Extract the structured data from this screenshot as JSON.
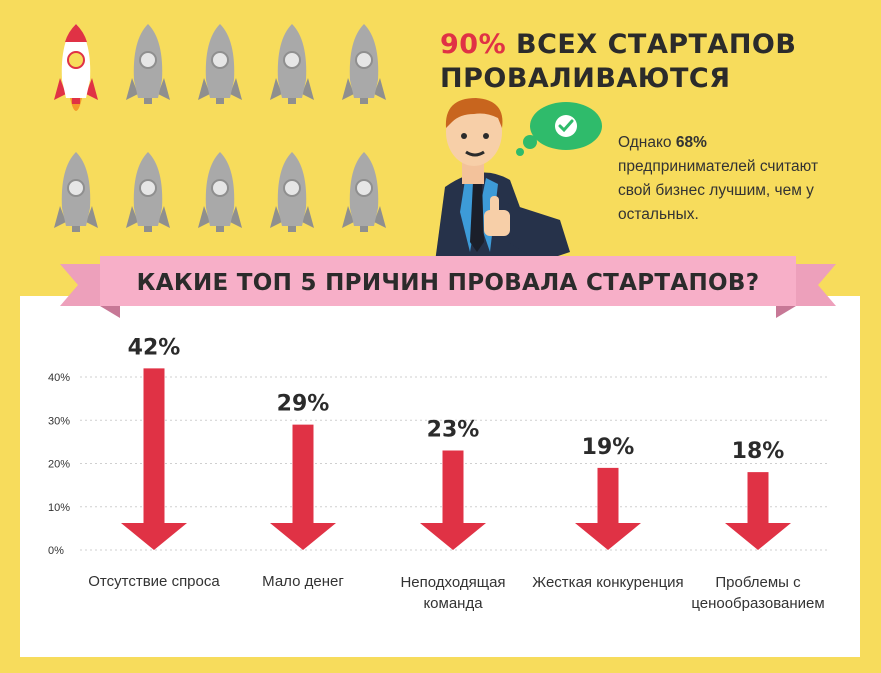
{
  "headline": {
    "accent": "90%",
    "line1_rest": " ВСЕХ СТАРТАПОВ",
    "line2": "ПРОВАЛИВАЮТСЯ"
  },
  "side_note": {
    "prefix": "Однако ",
    "highlight": "68%",
    "rest": "предпринимателей считают свой бизнес лучшим, чем у остальных."
  },
  "icons": {
    "rockets": [
      "rocket-launched-icon",
      "rocket-grounded-icon"
    ],
    "person": "businessman-thumbs-up-icon",
    "bubble": "thought-bubble-check-icon"
  },
  "colors": {
    "background": "#f7dc5c",
    "accent_red": "#e03245",
    "banner_pink": "#f7afc8",
    "rocket_gray": "#a9a9a9",
    "bubble_green": "#2fbb6b"
  },
  "chart_data": {
    "type": "bar",
    "title": "КАКИЕ ТОП 5 ПРИЧИН ПРОВАЛА СТАРТАПОВ?",
    "categories": [
      "Отсутствие спроса",
      "Мало денег",
      "Неподходящая команда",
      "Жесткая конкуренция",
      "Проблемы с ценообразованием"
    ],
    "values": [
      42,
      29,
      23,
      19,
      18
    ],
    "value_labels": [
      "42%",
      "29%",
      "23%",
      "19%",
      "18%"
    ],
    "y_ticks": [
      "0%",
      "10%",
      "20%",
      "30%",
      "40%"
    ],
    "y_tick_values": [
      0,
      10,
      20,
      30,
      40
    ],
    "ylim": [
      0,
      42
    ],
    "xlabel": "",
    "ylabel": "",
    "grid": true,
    "bar_style": "downward-arrow",
    "bar_color": "#e03245"
  }
}
